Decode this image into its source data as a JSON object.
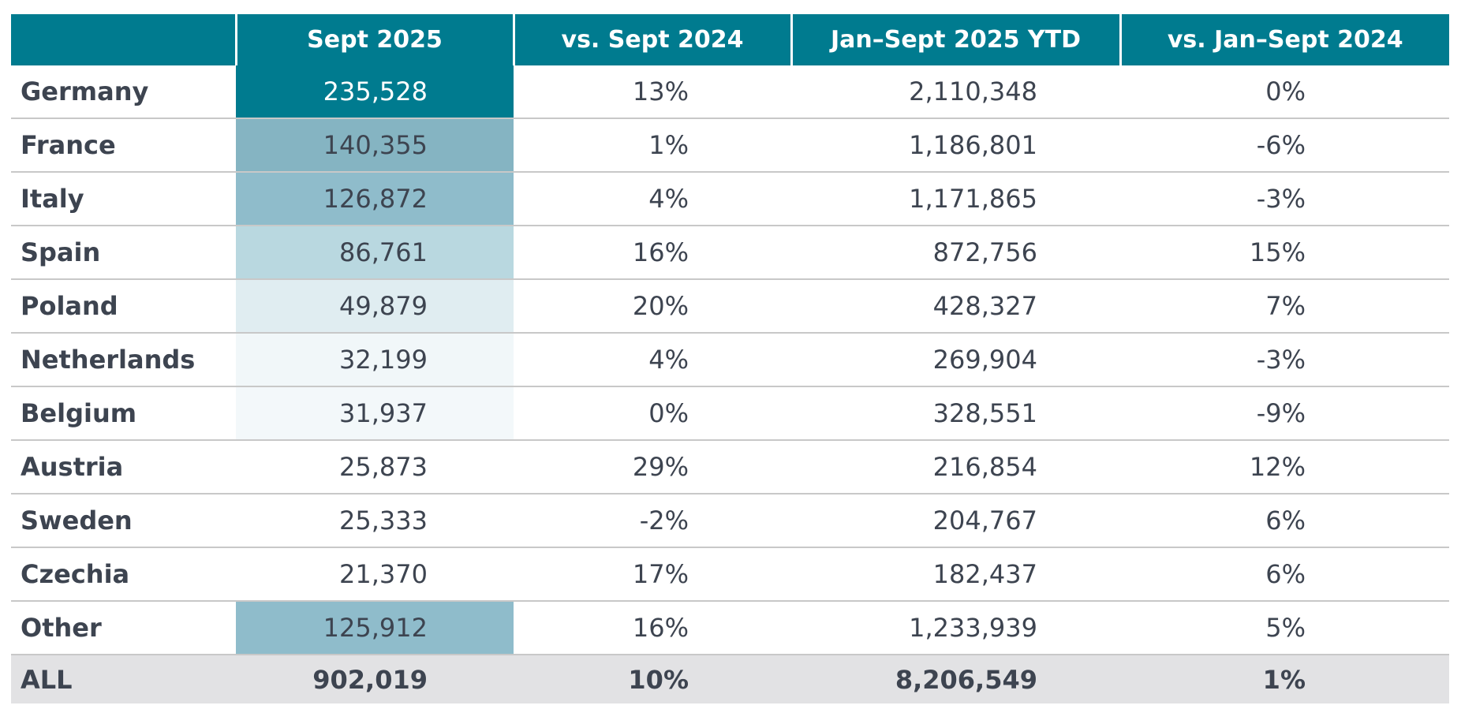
{
  "table": {
    "header": [
      "Sept 2025",
      "vs. Sept 2024",
      "Jan–Sept 2025 YTD",
      "vs. Jan–Sept 2024"
    ],
    "rows": [
      [
        "Germany",
        "235,528",
        "13%",
        "2,110,348",
        "0%"
      ],
      [
        "France",
        "140,355",
        "1%",
        "1,186,801",
        "-6%"
      ],
      [
        "Italy",
        "126,872",
        "4%",
        "1,171,865",
        "-3%"
      ],
      [
        "Spain",
        "86,761",
        "16%",
        "872,756",
        "15%"
      ],
      [
        "Poland",
        "49,879",
        "20%",
        "428,327",
        "7%"
      ],
      [
        "Netherlands",
        "32,199",
        "4%",
        "269,904",
        "-3%"
      ],
      [
        "Belgium",
        "31,937",
        "0%",
        "328,551",
        "-9%"
      ],
      [
        "Austria",
        "25,873",
        "29%",
        "216,854",
        "12%"
      ],
      [
        "Sweden",
        "25,333",
        "-2%",
        "204,767",
        "6%"
      ],
      [
        "Czechia",
        "21,370",
        "17%",
        "182,437",
        "6%"
      ],
      [
        "Other",
        "125,912",
        "16%",
        "1,233,939",
        "5%"
      ]
    ],
    "total": [
      "ALL",
      "902,019",
      "10%",
      "8,206,549",
      "1%"
    ]
  }
}
